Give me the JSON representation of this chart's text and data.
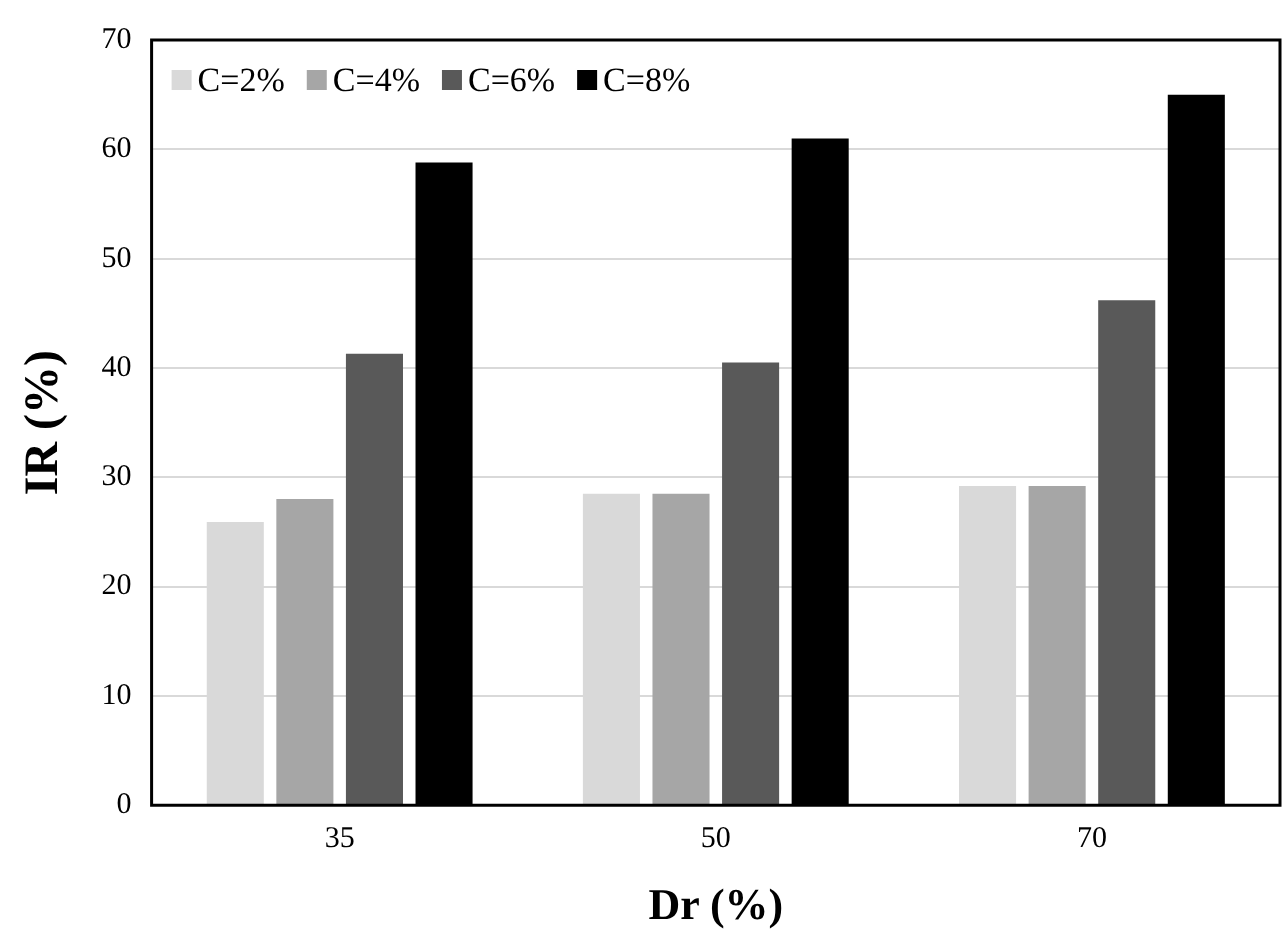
{
  "chart_data": {
    "type": "bar",
    "xlabel": "Dr (%)",
    "ylabel": "IR (%)",
    "categories": [
      "35",
      "50",
      "70"
    ],
    "series": [
      {
        "name": "C=2%",
        "color": "#d9d9d9",
        "values": [
          25.9,
          28.5,
          29.2
        ]
      },
      {
        "name": "C=4%",
        "color": "#a6a6a6",
        "values": [
          28,
          28.5,
          29.2
        ]
      },
      {
        "name": "C=6%",
        "color": "#595959",
        "values": [
          41.3,
          40.5,
          46.2
        ]
      },
      {
        "name": "C=8%",
        "color": "#000000",
        "values": [
          58.8,
          61,
          65
        ]
      }
    ],
    "ylim": [
      0,
      70
    ],
    "yticks": [
      0,
      10,
      20,
      30,
      40,
      50,
      60,
      70
    ],
    "grid": "y",
    "legend": "top left"
  }
}
